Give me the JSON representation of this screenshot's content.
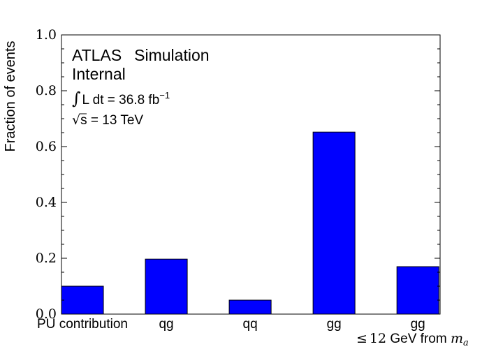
{
  "chart_data": {
    "type": "bar",
    "ylabel": "Fraction of events",
    "xlabel_parts": {
      "le": "≤",
      "num": "12",
      "text": " GeV from ",
      "var": "m",
      "sub": "a"
    },
    "categories": [
      "PU contribution",
      "qg",
      "qq",
      "gg",
      "gg"
    ],
    "values": [
      0.1,
      0.197,
      0.05,
      0.652,
      0.17
    ],
    "ylim": [
      0,
      1.0
    ],
    "yticks": [
      "0.0",
      "0.2",
      "0.4",
      "0.6",
      "0.8",
      "1.0"
    ],
    "bar_color": "#0000ff",
    "grid": false,
    "annotations": {
      "atlas": "ATLAS",
      "simulation": "Simulation",
      "internal": "Internal",
      "lumi_int": "∫",
      "lumi_text": "L dt = 36.8 fb",
      "lumi_exp": "−1",
      "energy_sqrt": "√",
      "energy_s": "s",
      "energy_rest": " = 13 TeV"
    }
  }
}
